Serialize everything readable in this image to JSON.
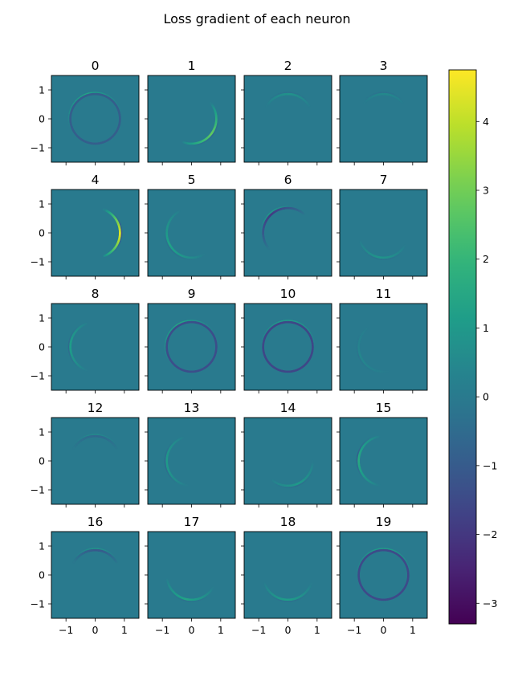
{
  "figure": {
    "title": "Loss gradient of each neuron"
  },
  "chart_data": {
    "type": "heatmap",
    "title": "Loss gradient of each neuron",
    "layout": "5 rows x 4 columns grid of small heatmaps with shared colorbar",
    "colormap": "viridis",
    "colorbar": {
      "vmin": -3.3,
      "vmax": 4.75,
      "ticks": [
        -3,
        -2,
        -1,
        0,
        1,
        2,
        3,
        4
      ]
    },
    "xlim": [
      -1.5,
      1.5
    ],
    "ylim": [
      -1.5,
      1.5
    ],
    "xticks": [
      -1,
      0,
      1
    ],
    "yticks": [
      -1,
      0,
      1
    ],
    "background_value": 0,
    "description_per_panel": "thin ring of radius ~0.85 centred at origin; positive/negative arc values",
    "panels": [
      {
        "label": "0",
        "ring_from_deg": 0,
        "ring_to_deg": 360,
        "value": -0.9,
        "rim_value": 1.4,
        "rim_center_deg": 110
      },
      {
        "label": "1",
        "ring_from_deg": 250,
        "ring_to_deg": 400,
        "value": 2.8,
        "rim_value": -0.6,
        "rim_center_deg": 320
      },
      {
        "label": "2",
        "ring_from_deg": 30,
        "ring_to_deg": 150,
        "value": 0.8,
        "rim_value": -0.3,
        "rim_center_deg": 90
      },
      {
        "label": "3",
        "ring_from_deg": 40,
        "ring_to_deg": 140,
        "value": 0.5,
        "rim_value": -0.3,
        "rim_center_deg": 90
      },
      {
        "label": "4",
        "ring_from_deg": -70,
        "ring_to_deg": 70,
        "value": 4.5,
        "rim_value": -1.2,
        "rim_center_deg": 0
      },
      {
        "label": "5",
        "ring_from_deg": 120,
        "ring_to_deg": 300,
        "value": 1.3,
        "rim_value": -0.4,
        "rim_center_deg": 220
      },
      {
        "label": "6",
        "ring_from_deg": 50,
        "ring_to_deg": 220,
        "value": -1.9,
        "rim_value": 1.2,
        "rim_center_deg": 130
      },
      {
        "label": "7",
        "ring_from_deg": 200,
        "ring_to_deg": 330,
        "value": 0.9,
        "rim_value": -0.3,
        "rim_center_deg": 265
      },
      {
        "label": "8",
        "ring_from_deg": 110,
        "ring_to_deg": 250,
        "value": 1.2,
        "rim_value": -0.6,
        "rim_center_deg": 180
      },
      {
        "label": "9",
        "ring_from_deg": 0,
        "ring_to_deg": 360,
        "value": -1.4,
        "rim_value": 1.5,
        "rim_center_deg": 120
      },
      {
        "label": "10",
        "ring_from_deg": 0,
        "ring_to_deg": 360,
        "value": -1.6,
        "rim_value": 1.3,
        "rim_center_deg": 90
      },
      {
        "label": "11",
        "ring_from_deg": 130,
        "ring_to_deg": 280,
        "value": 0.4,
        "rim_value": -0.2,
        "rim_center_deg": 200
      },
      {
        "label": "12",
        "ring_from_deg": 30,
        "ring_to_deg": 150,
        "value": -0.6,
        "rim_value": 0.6,
        "rim_center_deg": 90
      },
      {
        "label": "13",
        "ring_from_deg": 110,
        "ring_to_deg": 260,
        "value": 1.1,
        "rim_value": -0.7,
        "rim_center_deg": 185
      },
      {
        "label": "14",
        "ring_from_deg": 230,
        "ring_to_deg": 360,
        "value": 1.0,
        "rim_value": -0.4,
        "rim_center_deg": 290
      },
      {
        "label": "15",
        "ring_from_deg": 100,
        "ring_to_deg": 260,
        "value": 1.6,
        "rim_value": -1.0,
        "rim_center_deg": 170
      },
      {
        "label": "16",
        "ring_from_deg": 30,
        "ring_to_deg": 150,
        "value": -1.1,
        "rim_value": 1.0,
        "rim_center_deg": 90
      },
      {
        "label": "17",
        "ring_from_deg": 190,
        "ring_to_deg": 330,
        "value": 1.4,
        "rim_value": -0.3,
        "rim_center_deg": 260
      },
      {
        "label": "18",
        "ring_from_deg": 200,
        "ring_to_deg": 340,
        "value": 1.2,
        "rim_value": -0.4,
        "rim_center_deg": 270
      },
      {
        "label": "19",
        "ring_from_deg": 0,
        "ring_to_deg": 360,
        "value": -1.5,
        "rim_value": 1.3,
        "rim_center_deg": 90
      }
    ]
  }
}
